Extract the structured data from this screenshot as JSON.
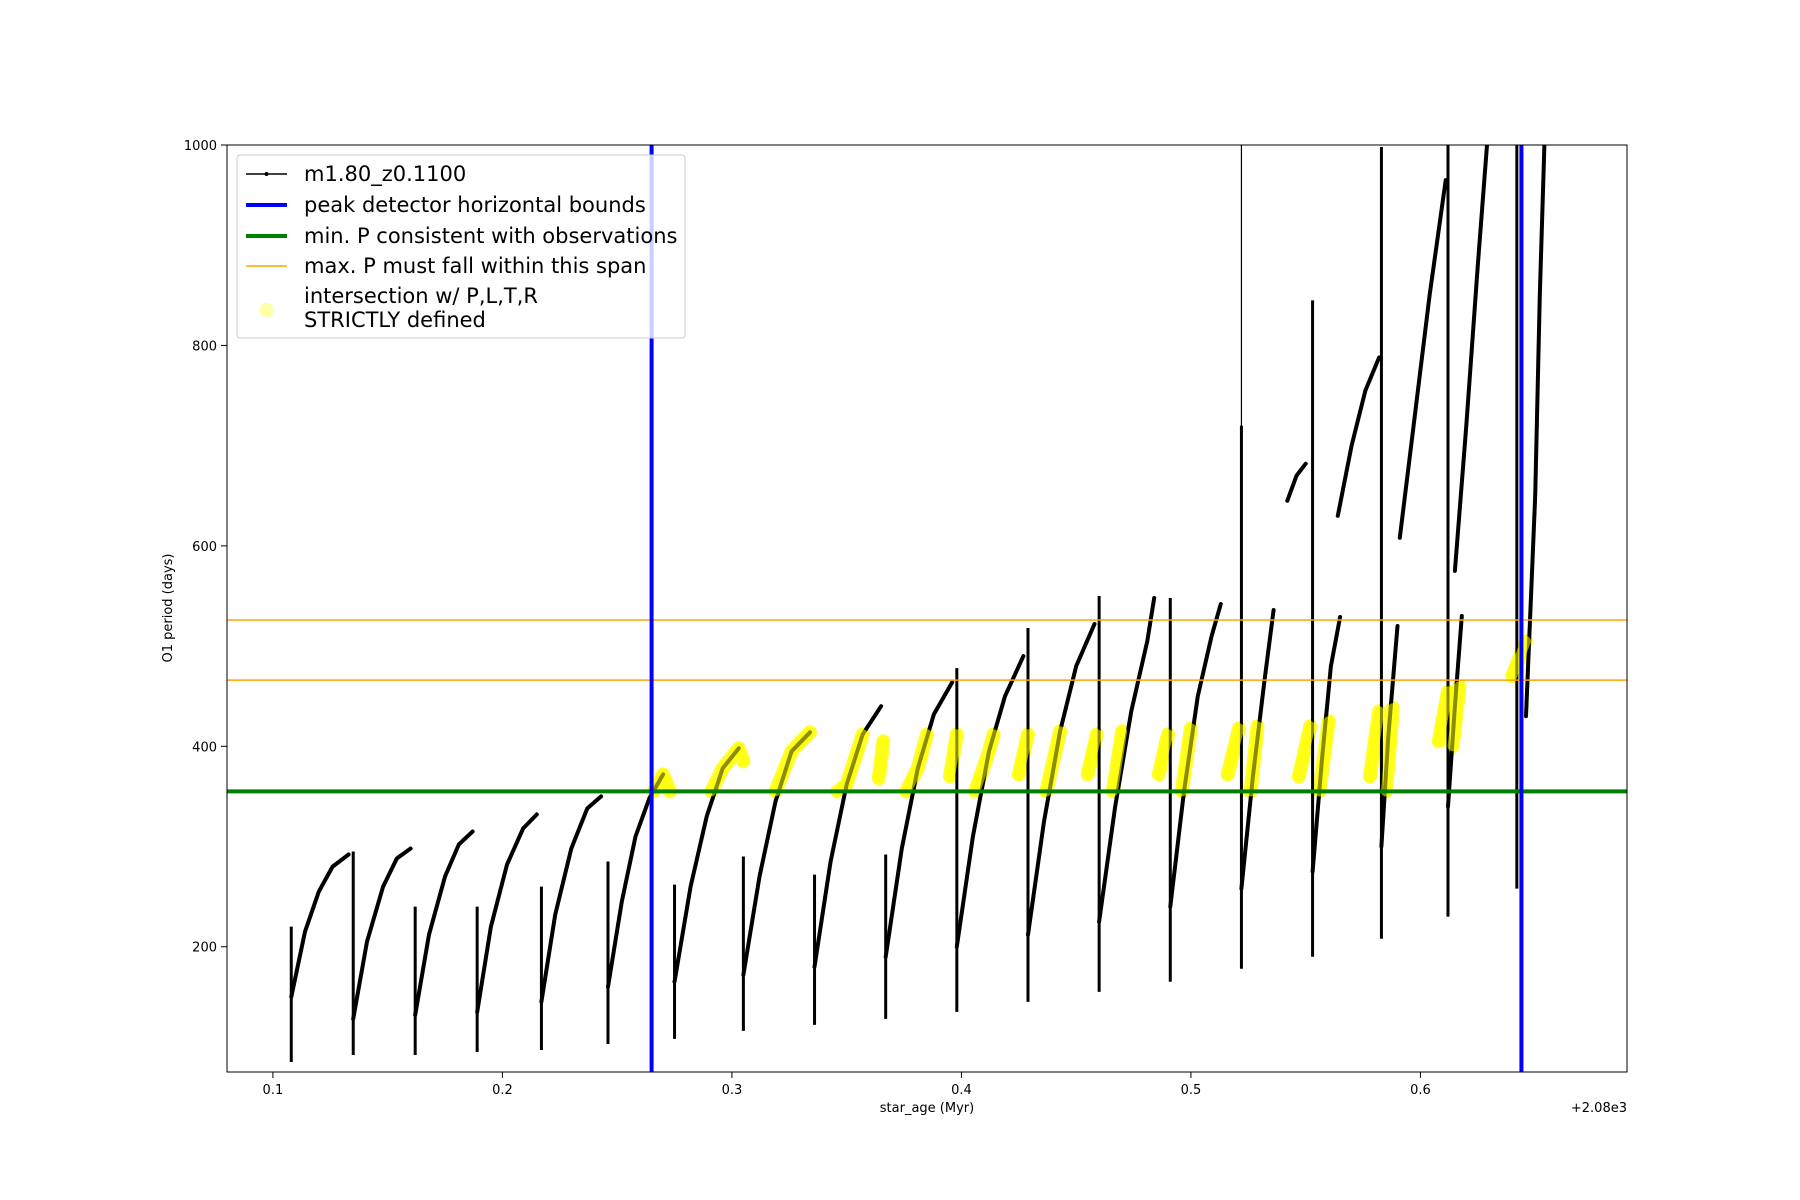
{
  "chart_data": {
    "type": "line",
    "xlabel": "star_age (Myr)",
    "ylabel": "O1 period (days)",
    "x_offset_label": "+2.08e3",
    "xlim": [
      0.08,
      0.69
    ],
    "ylim": [
      75,
      1000
    ],
    "x_ticks": [
      0.1,
      0.2,
      0.3,
      0.4,
      0.5,
      0.6
    ],
    "x_tick_labels": [
      "0.1",
      "0.2",
      "0.3",
      "0.4",
      "0.5",
      "0.6"
    ],
    "y_ticks": [
      200,
      400,
      600,
      800,
      1000
    ],
    "y_tick_labels": [
      "200",
      "400",
      "600",
      "800",
      "1000"
    ],
    "legend_position": "top-left",
    "colors": {
      "model": "#000000",
      "bounds": "#0000ff",
      "min_p": "#008000",
      "max_p": "#ffa500",
      "intersection": "#ffff00"
    },
    "series": [
      {
        "name": "m1.80_z0.1100",
        "style": "black line with point markers",
        "cycles": [
          [
            [
              0.108,
              150
            ],
            [
              0.114,
              215
            ],
            [
              0.12,
              255
            ],
            [
              0.126,
              280
            ],
            [
              0.133,
              292
            ]
          ],
          [
            [
              0.135,
              128
            ],
            [
              0.141,
              205
            ],
            [
              0.148,
              260
            ],
            [
              0.154,
              288
            ],
            [
              0.16,
              298
            ]
          ],
          [
            [
              0.162,
              132
            ],
            [
              0.168,
              212
            ],
            [
              0.175,
              270
            ],
            [
              0.181,
              302
            ],
            [
              0.187,
              315
            ]
          ],
          [
            [
              0.189,
              135
            ],
            [
              0.195,
              220
            ],
            [
              0.202,
              282
            ],
            [
              0.209,
              318
            ],
            [
              0.215,
              332
            ]
          ],
          [
            [
              0.217,
              145
            ],
            [
              0.223,
              232
            ],
            [
              0.23,
              298
            ],
            [
              0.237,
              338
            ],
            [
              0.243,
              350
            ]
          ],
          [
            [
              0.246,
              160
            ],
            [
              0.252,
              245
            ],
            [
              0.258,
              310
            ],
            [
              0.264,
              348
            ],
            [
              0.27,
              372
            ]
          ],
          [
            [
              0.275,
              165
            ],
            [
              0.282,
              260
            ],
            [
              0.289,
              330
            ],
            [
              0.296,
              378
            ],
            [
              0.303,
              398
            ]
          ],
          [
            [
              0.305,
              172
            ],
            [
              0.312,
              270
            ],
            [
              0.319,
              345
            ],
            [
              0.326,
              395
            ],
            [
              0.334,
              414
            ]
          ],
          [
            [
              0.336,
              180
            ],
            [
              0.343,
              285
            ],
            [
              0.35,
              362
            ],
            [
              0.357,
              412
            ],
            [
              0.365,
              440
            ]
          ],
          [
            [
              0.367,
              190
            ],
            [
              0.374,
              298
            ],
            [
              0.381,
              378
            ],
            [
              0.388,
              432
            ],
            [
              0.396,
              464
            ]
          ],
          [
            [
              0.398,
              200
            ],
            [
              0.405,
              310
            ],
            [
              0.412,
              395
            ],
            [
              0.419,
              450
            ],
            [
              0.427,
              490
            ]
          ],
          [
            [
              0.429,
              212
            ],
            [
              0.436,
              325
            ],
            [
              0.443,
              415
            ],
            [
              0.45,
              480
            ],
            [
              0.458,
              522
            ]
          ],
          [
            [
              0.46,
              225
            ],
            [
              0.467,
              340
            ],
            [
              0.474,
              435
            ],
            [
              0.481,
              505
            ],
            [
              0.484,
              548
            ]
          ],
          [
            [
              0.491,
              240
            ],
            [
              0.497,
              355
            ],
            [
              0.503,
              450
            ],
            [
              0.509,
              510
            ],
            [
              0.513,
              542
            ]
          ],
          [
            [
              0.522,
              258
            ],
            [
              0.527,
              370
            ],
            [
              0.532,
              465
            ],
            [
              0.536,
              536
            ]
          ],
          [
            [
              0.553,
              275
            ],
            [
              0.557,
              385
            ],
            [
              0.561,
              480
            ],
            [
              0.565,
              529
            ]
          ],
          [
            [
              0.583,
              300
            ],
            [
              0.586,
              410
            ],
            [
              0.59,
              520
            ]
          ],
          [
            [
              0.612,
              340
            ],
            [
              0.615,
              440
            ],
            [
              0.618,
              530
            ]
          ],
          [
            [
              0.542,
              645
            ],
            [
              0.546,
              670
            ],
            [
              0.55,
              682
            ]
          ],
          [
            [
              0.564,
              630
            ],
            [
              0.57,
              700
            ],
            [
              0.576,
              755
            ],
            [
              0.582,
              788
            ]
          ],
          [
            [
              0.591,
              608
            ],
            [
              0.597,
              720
            ],
            [
              0.604,
              850
            ],
            [
              0.611,
              965
            ]
          ],
          [
            [
              0.615,
              575
            ],
            [
              0.62,
              720
            ],
            [
              0.625,
              880
            ],
            [
              0.629,
              1000
            ]
          ],
          [
            [
              0.646,
              430
            ],
            [
              0.65,
              650
            ],
            [
              0.652,
              850
            ],
            [
              0.654,
              1000
            ]
          ]
        ],
        "drops": [
          [
            0.108,
            85,
            220
          ],
          [
            0.135,
            92,
            295
          ],
          [
            0.162,
            92,
            240
          ],
          [
            0.189,
            95,
            240
          ],
          [
            0.217,
            97,
            260
          ],
          [
            0.246,
            103,
            285
          ],
          [
            0.275,
            108,
            262
          ],
          [
            0.305,
            116,
            290
          ],
          [
            0.336,
            122,
            272
          ],
          [
            0.367,
            128,
            292
          ],
          [
            0.398,
            135,
            478
          ],
          [
            0.429,
            145,
            518
          ],
          [
            0.46,
            155,
            550
          ],
          [
            0.491,
            165,
            548
          ],
          [
            0.522,
            178,
            720
          ],
          [
            0.553,
            190,
            845
          ],
          [
            0.583,
            208,
            998
          ],
          [
            0.612,
            230,
            1000
          ],
          [
            0.642,
            258,
            1000
          ],
          [
            0.522,
            530,
            1000
          ]
        ]
      },
      {
        "name": "peak detector horizontal bounds",
        "type": "vertical-lines",
        "x": [
          0.265,
          0.644
        ]
      },
      {
        "name": "min. P consistent with observations",
        "type": "horizontal-line",
        "y": 355
      },
      {
        "name": "max. P must fall within this span",
        "type": "horizontal-lines",
        "y": [
          466,
          526
        ]
      },
      {
        "name": "intersection w/ P,L,T,R\nSTRICTLY defined",
        "type": "highlight",
        "segments": [
          [
            [
              0.266,
              355
            ],
            [
              0.27,
              372
            ],
            [
              0.273,
              355
            ]
          ],
          [
            [
              0.291,
              355
            ],
            [
              0.296,
              378
            ],
            [
              0.303,
              398
            ],
            [
              0.305,
              385
            ]
          ],
          [
            [
              0.319,
              355
            ],
            [
              0.326,
              395
            ],
            [
              0.334,
              414
            ]
          ],
          [
            [
              0.346,
              355
            ],
            [
              0.35,
              362
            ],
            [
              0.357,
              412
            ]
          ],
          [
            [
              0.364,
              368
            ],
            [
              0.366,
              405
            ]
          ],
          [
            [
              0.376,
              355
            ],
            [
              0.381,
              378
            ],
            [
              0.385,
              412
            ]
          ],
          [
            [
              0.395,
              370
            ],
            [
              0.398,
              412
            ]
          ],
          [
            [
              0.406,
              355
            ],
            [
              0.412,
              395
            ],
            [
              0.414,
              412
            ]
          ],
          [
            [
              0.425,
              372
            ],
            [
              0.429,
              412
            ]
          ],
          [
            [
              0.437,
              355
            ],
            [
              0.443,
              415
            ]
          ],
          [
            [
              0.455,
              372
            ],
            [
              0.459,
              412
            ]
          ],
          [
            [
              0.466,
              355
            ],
            [
              0.47,
              415
            ]
          ],
          [
            [
              0.486,
              372
            ],
            [
              0.49,
              412
            ]
          ],
          [
            [
              0.496,
              355
            ],
            [
              0.5,
              418
            ]
          ],
          [
            [
              0.516,
              372
            ],
            [
              0.521,
              418
            ]
          ],
          [
            [
              0.526,
              355
            ],
            [
              0.529,
              420
            ]
          ],
          [
            [
              0.547,
              370
            ],
            [
              0.552,
              420
            ]
          ],
          [
            [
              0.556,
              355
            ],
            [
              0.56,
              425
            ]
          ],
          [
            [
              0.578,
              370
            ],
            [
              0.582,
              435
            ]
          ],
          [
            [
              0.585,
              355
            ],
            [
              0.588,
              438
            ]
          ],
          [
            [
              0.608,
              405
            ],
            [
              0.612,
              455
            ]
          ],
          [
            [
              0.614,
              400
            ],
            [
              0.617,
              460
            ]
          ],
          [
            [
              0.64,
              470
            ],
            [
              0.646,
              505
            ]
          ]
        ]
      }
    ]
  }
}
